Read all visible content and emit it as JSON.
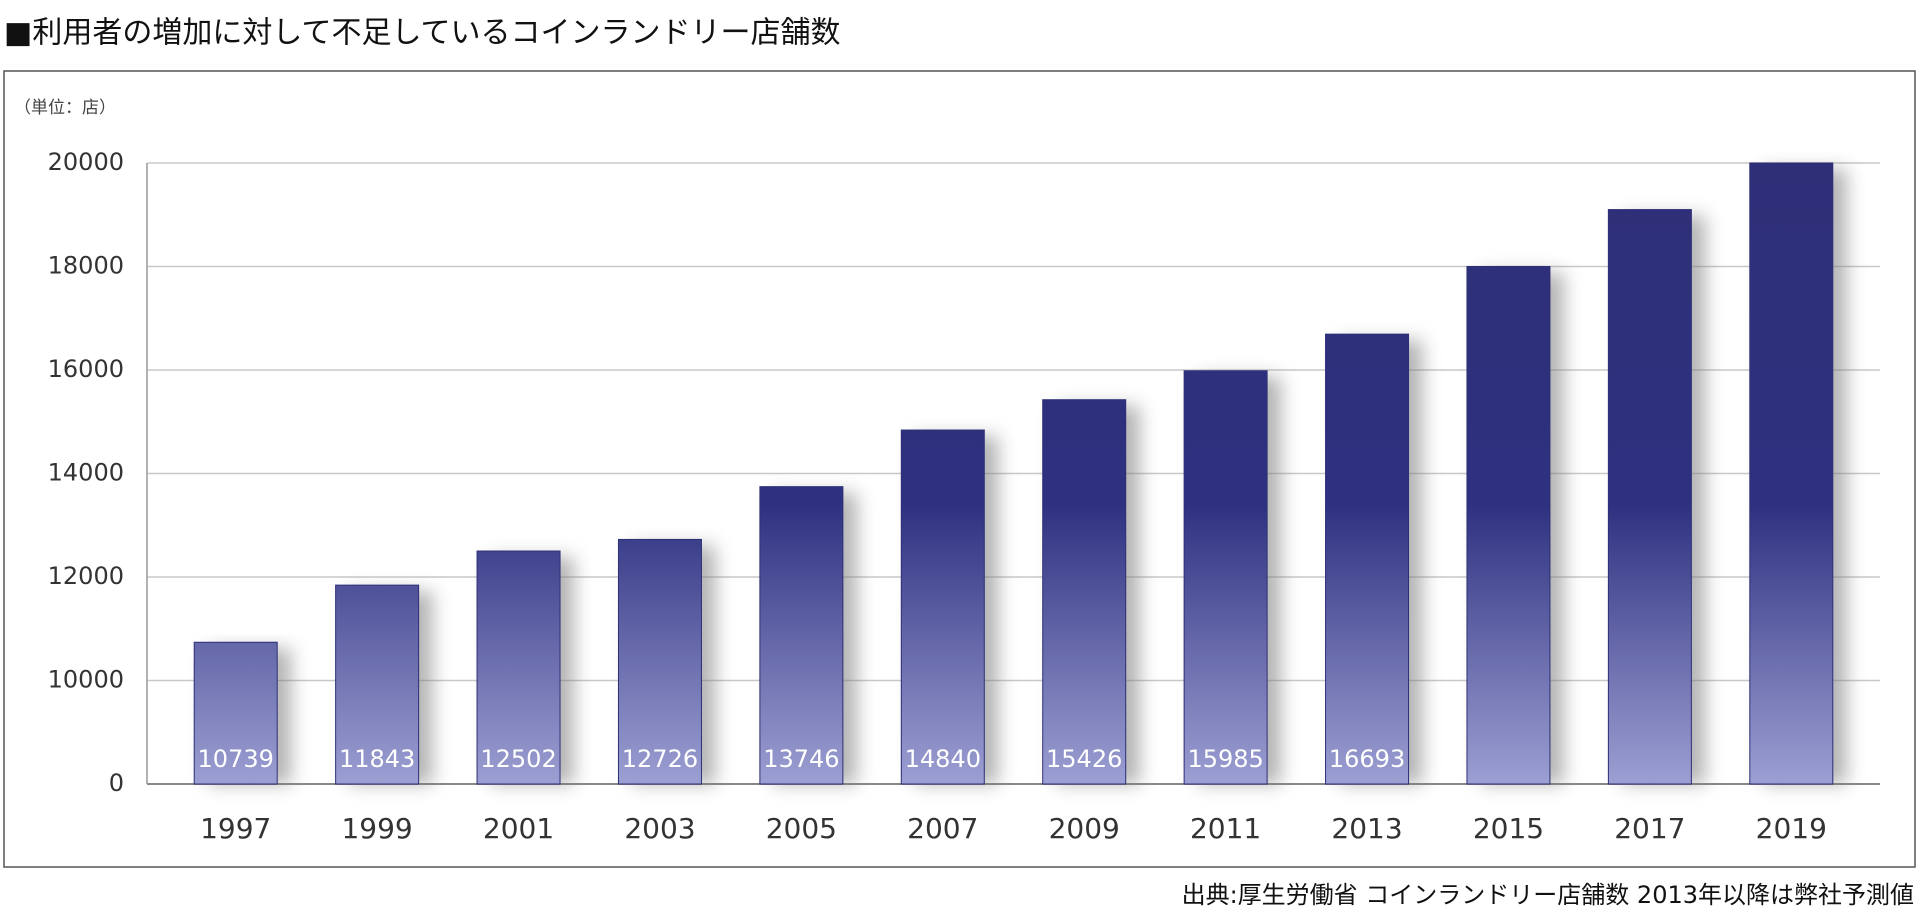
{
  "chart_data": {
    "type": "bar",
    "title": "■利用者の増加に対して不足しているコインランドリー店舗数",
    "unit_label": "（単位：店）",
    "source": "出典:厚生労働省 コインランドリー店舗数 2013年以降は弊社予測値",
    "categories": [
      "1997",
      "1999",
      "2001",
      "2003",
      "2005",
      "2007",
      "2009",
      "2011",
      "2013",
      "2015",
      "2017",
      "2019"
    ],
    "values": [
      10739,
      11843,
      12502,
      12726,
      13746,
      14840,
      15426,
      15985,
      16693,
      18000,
      19100,
      20000
    ],
    "value_labels": [
      10739,
      11843,
      12502,
      12726,
      13746,
      14840,
      15426,
      15985,
      16693,
      null,
      null,
      null
    ],
    "color": "#2e2f77",
    "ylim": [
      0,
      20000
    ],
    "yticks": [
      0,
      10000,
      12000,
      14000,
      16000,
      18000,
      20000
    ],
    "grid": true
  }
}
